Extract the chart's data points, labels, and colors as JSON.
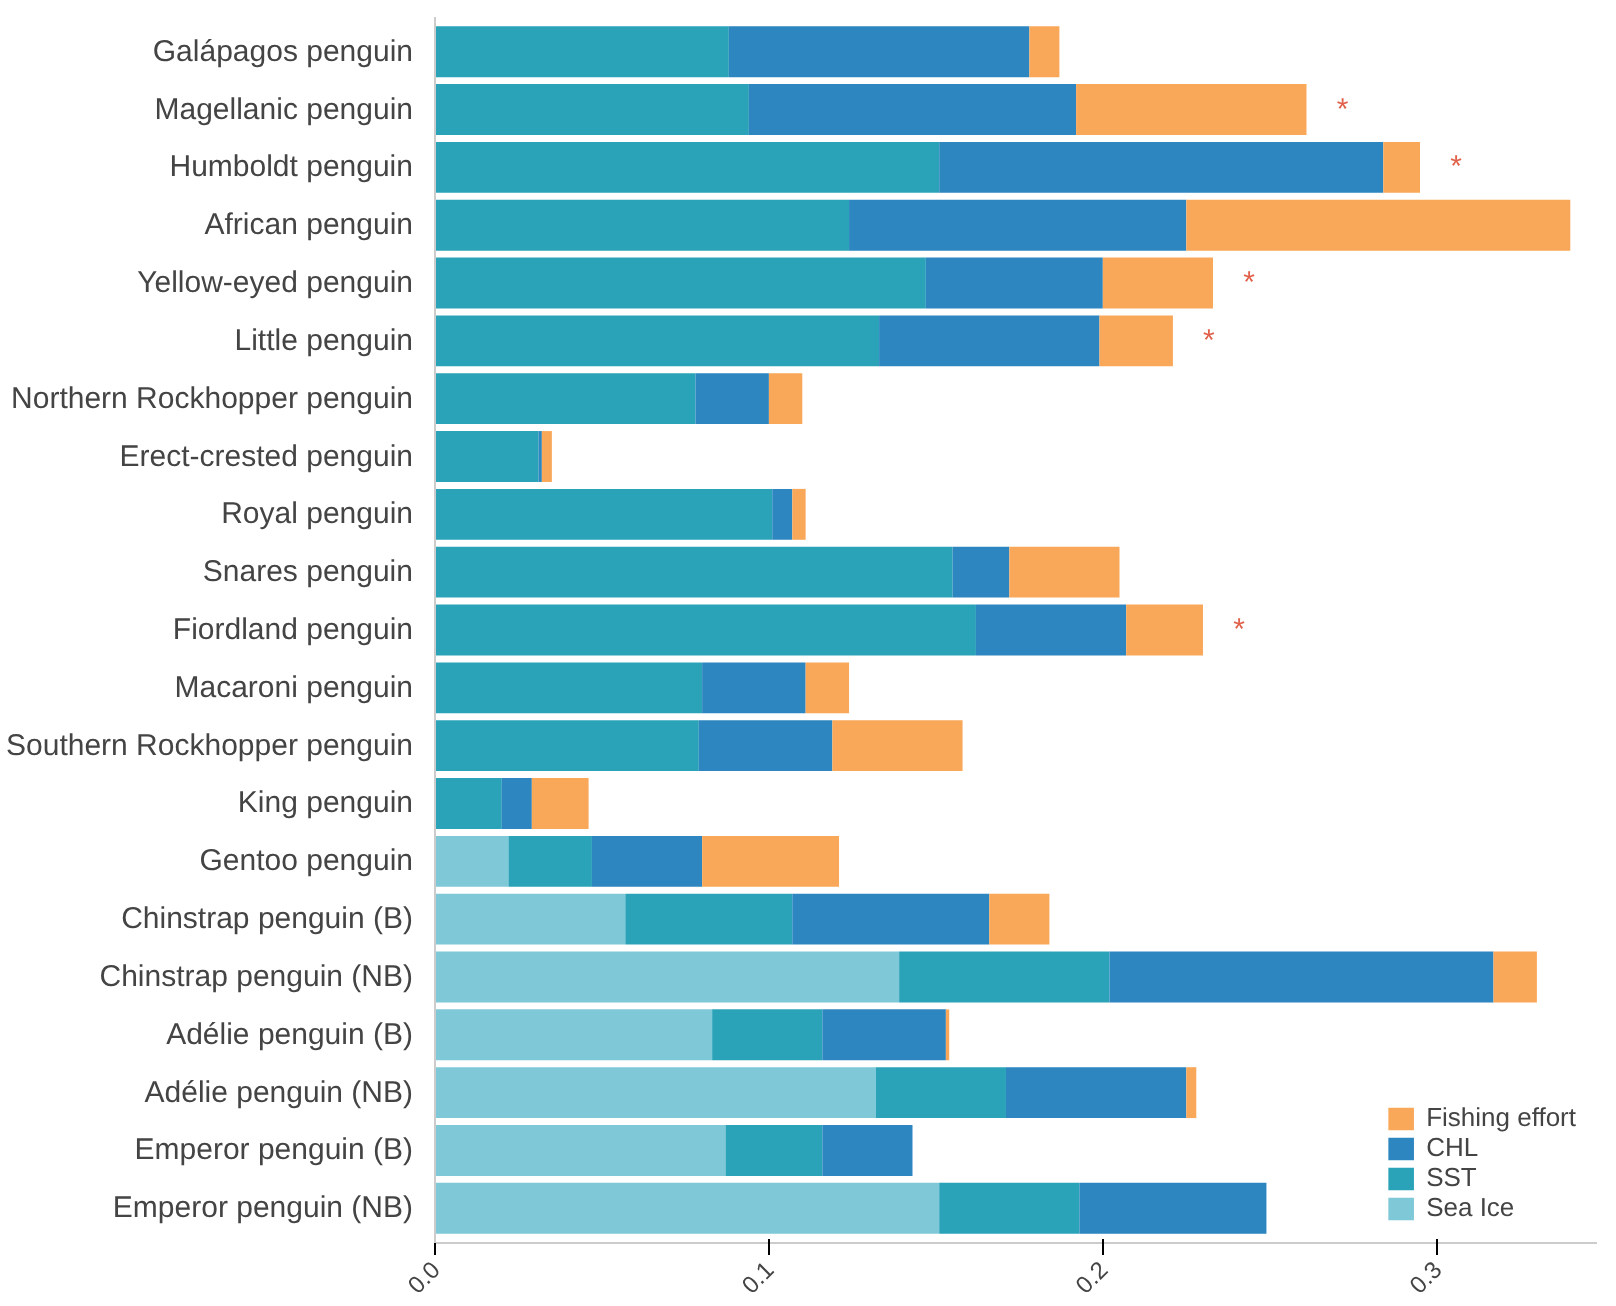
{
  "chart_data": {
    "type": "bar",
    "orientation": "horizontal",
    "stacked": true,
    "categories": [
      "Galápagos penguin",
      "Magellanic penguin",
      "Humboldt penguin",
      "African penguin",
      "Yellow-eyed penguin",
      "Little penguin",
      "Northern Rockhopper penguin",
      "Erect-crested penguin",
      "Royal penguin",
      "Snares penguin",
      "Fiordland penguin",
      "Macaroni penguin",
      "Southern Rockhopper penguin",
      "King penguin",
      "Gentoo penguin",
      "Chinstrap penguin (B)",
      "Chinstrap penguin (NB)",
      "Adélie penguin (B)",
      "Adélie penguin (NB)",
      "Emperor penguin (B)",
      "Emperor penguin (NB)"
    ],
    "series": [
      {
        "name": "Sea Ice",
        "color": "#7ec8d8",
        "values": [
          0,
          0,
          0,
          0,
          0,
          0,
          0,
          0,
          0,
          0,
          0,
          0,
          0,
          0,
          0.022,
          0.057,
          0.139,
          0.083,
          0.132,
          0.087,
          0.151
        ]
      },
      {
        "name": "SST",
        "color": "#2aa3b8",
        "values": [
          0.088,
          0.094,
          0.151,
          0.124,
          0.147,
          0.133,
          0.078,
          0.031,
          0.101,
          0.155,
          0.162,
          0.08,
          0.079,
          0.02,
          0.025,
          0.05,
          0.063,
          0.033,
          0.039,
          0.029,
          0.042
        ]
      },
      {
        "name": "CHL",
        "color": "#2e86c1",
        "values": [
          0.09,
          0.098,
          0.133,
          0.101,
          0.053,
          0.066,
          0.022,
          0.001,
          0.006,
          0.017,
          0.045,
          0.031,
          0.04,
          0.009,
          0.033,
          0.059,
          0.115,
          0.037,
          0.054,
          0.027,
          0.056
        ]
      },
      {
        "name": "Fishing effort",
        "color": "#f9a85a",
        "values": [
          0.009,
          0.069,
          0.011,
          0.115,
          0.033,
          0.022,
          0.01,
          0.003,
          0.004,
          0.033,
          0.023,
          0.013,
          0.039,
          0.017,
          0.041,
          0.018,
          0.013,
          0.001,
          0.003,
          0,
          0
        ]
      }
    ],
    "xlim": [
      0,
      0.348
    ],
    "xticks": [
      {
        "value": 0,
        "label": "0.0"
      },
      0.1,
      0.2,
      0.3
    ],
    "annotations": [
      {
        "text": "*",
        "x": 0.261,
        "y": "Magellanic penguin"
      },
      {
        "text": "*",
        "x": 0.295,
        "y": "Humboldt penguin"
      },
      {
        "text": "*",
        "x": 0.233,
        "y": "Yellow-eyed penguin"
      },
      {
        "text": "*",
        "x": 0.221,
        "y": "Little penguin"
      },
      {
        "text": "*",
        "x": 0.23,
        "y": "Fiordland penguin"
      }
    ],
    "legend": "bottom right",
    "grid": false
  }
}
